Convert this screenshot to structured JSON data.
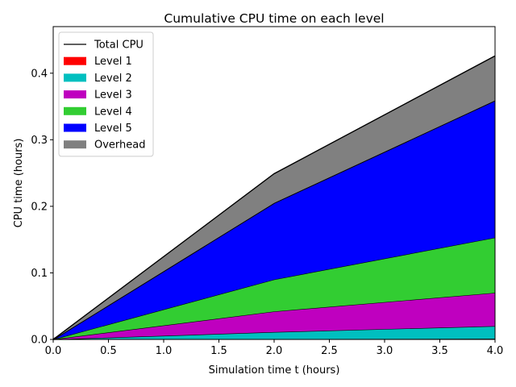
{
  "chart_data": {
    "type": "area",
    "title": "Cumulative CPU time on each level",
    "xlabel": "Simulation time t (hours)",
    "ylabel": "CPU time (hours)",
    "xlim": [
      0.0,
      4.0
    ],
    "ylim": [
      0.0,
      0.47
    ],
    "xticks": [
      "0.0",
      "0.5",
      "1.0",
      "1.5",
      "2.0",
      "2.5",
      "3.0",
      "3.5",
      "4.0"
    ],
    "yticks": [
      "0.0",
      "0.1",
      "0.2",
      "0.3",
      "0.4"
    ],
    "x": [
      0.0,
      2.0,
      4.0
    ],
    "stacked": true,
    "legend_position": "upper-left",
    "total_line": {
      "name": "Total CPU",
      "color": "#000000",
      "values": [
        0.0,
        0.249,
        0.426
      ]
    },
    "series": [
      {
        "name": "Level 1",
        "color": "#ff0000",
        "values": [
          0.0,
          0.0005,
          0.001
        ]
      },
      {
        "name": "Level 2",
        "color": "#00bfbf",
        "values": [
          0.0,
          0.0105,
          0.019
        ]
      },
      {
        "name": "Level 3",
        "color": "#bf00bf",
        "values": [
          0.0,
          0.031,
          0.05
        ]
      },
      {
        "name": "Level 4",
        "color": "#32cd32",
        "values": [
          0.0,
          0.048,
          0.083
        ]
      },
      {
        "name": "Level 5",
        "color": "#0000ff",
        "values": [
          0.0,
          0.115,
          0.206
        ]
      },
      {
        "name": "Overhead",
        "color": "#808080",
        "values": [
          0.0,
          0.044,
          0.067
        ]
      }
    ]
  }
}
